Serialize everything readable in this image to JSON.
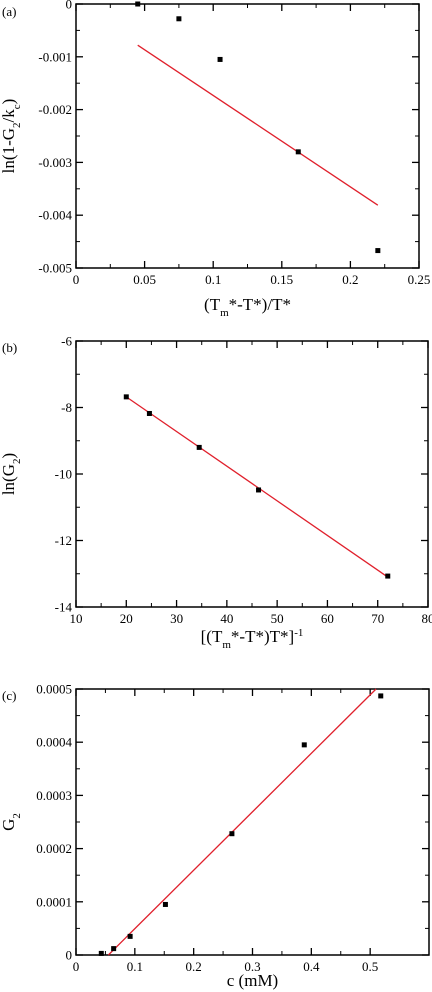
{
  "chart_data": [
    {
      "type": "scatter",
      "panel_label": "(a)",
      "xlabel": "(T_m*-T*)/T*",
      "ylabel": "ln(1-G_2/k_c)",
      "xlim": [
        0,
        0.25
      ],
      "ylim": [
        -0.005,
        0
      ],
      "xticks": [
        0,
        0.05,
        0.1,
        0.15,
        0.2,
        0.25
      ],
      "xtick_labels": [
        "0",
        "0.05",
        "0.1",
        "0.15",
        "0.2",
        "0.25"
      ],
      "yticks": [
        -0.005,
        -0.004,
        -0.003,
        -0.002,
        -0.001,
        0
      ],
      "ytick_labels": [
        "-0.005",
        "-0.004",
        "-0.003",
        "-0.002",
        "-0.001",
        "0"
      ],
      "points": [
        [
          0.045,
          0.0
        ],
        [
          0.075,
          -0.00028
        ],
        [
          0.105,
          -0.00105
        ],
        [
          0.162,
          -0.0028
        ],
        [
          0.22,
          -0.00467
        ]
      ],
      "fit_line": [
        [
          0.045,
          -0.00078
        ],
        [
          0.22,
          -0.00381
        ]
      ],
      "marker_color": "#000000",
      "line_color": "#e0202c",
      "grid": false
    },
    {
      "type": "scatter",
      "panel_label": "(b)",
      "xlabel": "[(T_m*-T*)T*]^-1",
      "ylabel": "ln(G_2)",
      "xlim": [
        10,
        80
      ],
      "ylim": [
        -14,
        -6
      ],
      "xticks": [
        10,
        20,
        30,
        40,
        50,
        60,
        70,
        80
      ],
      "xtick_labels": [
        "10",
        "20",
        "30",
        "40",
        "50",
        "60",
        "70",
        "80"
      ],
      "yticks": [
        -14,
        -12,
        -10,
        -8,
        -6
      ],
      "ytick_labels": [
        "-14",
        "-12",
        "-10",
        "-8",
        "-6"
      ],
      "points": [
        [
          20,
          -7.68
        ],
        [
          24.6,
          -8.18
        ],
        [
          34.5,
          -9.2
        ],
        [
          46.3,
          -10.48
        ],
        [
          72,
          -13.07
        ]
      ],
      "fit_line": [
        [
          20,
          -7.68
        ],
        [
          72,
          -13.1
        ]
      ],
      "marker_color": "#000000",
      "line_color": "#e0202c",
      "grid": false
    },
    {
      "type": "scatter",
      "panel_label": "(c)",
      "xlabel": "c (mM)",
      "ylabel": "G_2",
      "xlim": [
        0,
        0.6
      ],
      "ylim": [
        0,
        0.0005
      ],
      "xticks": [
        0,
        0.1,
        0.2,
        0.3,
        0.4,
        0.5
      ],
      "xtick_labels": [
        "0",
        "0.1",
        "0.2",
        "0.3",
        "0.4",
        "0.5"
      ],
      "yticks": [
        0,
        0.0001,
        0.0002,
        0.0003,
        0.0004,
        0.0005
      ],
      "ytick_labels": [
        "0",
        "0.0001",
        "0.0002",
        "0.0003",
        "0.0004",
        "0.0005"
      ],
      "points": [
        [
          0.043,
          3e-06
        ],
        [
          0.064,
          1.2e-05
        ],
        [
          0.092,
          3.5e-05
        ],
        [
          0.152,
          9.5e-05
        ],
        [
          0.265,
          0.000228
        ],
        [
          0.388,
          0.000395
        ],
        [
          0.518,
          0.000487
        ]
      ],
      "fit_line": [
        [
          0.055,
          0.0
        ],
        [
          0.51,
          0.0005
        ]
      ],
      "marker_color": "#000000",
      "line_color": "#e0202c",
      "grid": false
    }
  ]
}
